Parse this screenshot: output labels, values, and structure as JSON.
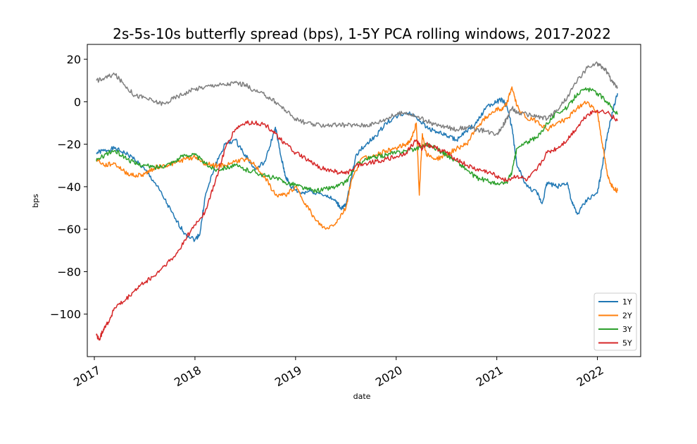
{
  "chart_data": {
    "type": "line",
    "title": "2s-5s-10s butterfly spread (bps), 1-5Y PCA rolling windows, 2017-2022",
    "xlabel": "date",
    "ylabel": "bps",
    "xlim": [
      2016.93,
      2022.43
    ],
    "ylim": [
      -120,
      27
    ],
    "x_ticks": [
      "2017",
      "2018",
      "2019",
      "2020",
      "2021",
      "2022"
    ],
    "y_ticks": [
      20,
      0,
      -20,
      -40,
      -60,
      -80,
      -100
    ],
    "legend": {
      "position": "bottom-right"
    },
    "series": [
      {
        "name": "1Y",
        "color": "#1f77b4",
        "points": [
          [
            2017.02,
            -24
          ],
          [
            2017.1,
            -23
          ],
          [
            2017.2,
            -22
          ],
          [
            2017.3,
            -24
          ],
          [
            2017.4,
            -27
          ],
          [
            2017.5,
            -32
          ],
          [
            2017.6,
            -38
          ],
          [
            2017.7,
            -46
          ],
          [
            2017.8,
            -55
          ],
          [
            2017.9,
            -62
          ],
          [
            2018.0,
            -65
          ],
          [
            2018.05,
            -62
          ],
          [
            2018.1,
            -45
          ],
          [
            2018.2,
            -30
          ],
          [
            2018.3,
            -20
          ],
          [
            2018.4,
            -18
          ],
          [
            2018.5,
            -25
          ],
          [
            2018.6,
            -32
          ],
          [
            2018.7,
            -28
          ],
          [
            2018.8,
            -12
          ],
          [
            2018.85,
            -25
          ],
          [
            2018.9,
            -35
          ],
          [
            2018.95,
            -40
          ],
          [
            2019.05,
            -43
          ],
          [
            2019.15,
            -42
          ],
          [
            2019.3,
            -44
          ],
          [
            2019.4,
            -47
          ],
          [
            2019.45,
            -50
          ],
          [
            2019.5,
            -49
          ],
          [
            2019.6,
            -25
          ],
          [
            2019.7,
            -20
          ],
          [
            2019.8,
            -16
          ],
          [
            2019.9,
            -10
          ],
          [
            2020.0,
            -7
          ],
          [
            2020.1,
            -5
          ],
          [
            2020.2,
            -7
          ],
          [
            2020.3,
            -12
          ],
          [
            2020.4,
            -14
          ],
          [
            2020.5,
            -16
          ],
          [
            2020.6,
            -18
          ],
          [
            2020.7,
            -14
          ],
          [
            2020.8,
            -10
          ],
          [
            2020.9,
            -2
          ],
          [
            2021.0,
            0
          ],
          [
            2021.05,
            1
          ],
          [
            2021.1,
            -2
          ],
          [
            2021.15,
            -12
          ],
          [
            2021.2,
            -30
          ],
          [
            2021.3,
            -40
          ],
          [
            2021.4,
            -43
          ],
          [
            2021.45,
            -48
          ],
          [
            2021.5,
            -38
          ],
          [
            2021.6,
            -40
          ],
          [
            2021.7,
            -38
          ],
          [
            2021.75,
            -48
          ],
          [
            2021.8,
            -53
          ],
          [
            2021.9,
            -46
          ],
          [
            2022.0,
            -43
          ],
          [
            2022.05,
            -30
          ],
          [
            2022.1,
            -15
          ],
          [
            2022.15,
            -5
          ],
          [
            2022.2,
            4
          ]
        ]
      },
      {
        "name": "2Y",
        "color": "#ff7f0e",
        "points": [
          [
            2017.02,
            -27
          ],
          [
            2017.1,
            -30
          ],
          [
            2017.2,
            -29
          ],
          [
            2017.3,
            -33
          ],
          [
            2017.4,
            -35
          ],
          [
            2017.5,
            -34
          ],
          [
            2017.6,
            -31
          ],
          [
            2017.7,
            -30
          ],
          [
            2017.8,
            -29
          ],
          [
            2017.9,
            -27
          ],
          [
            2018.0,
            -26
          ],
          [
            2018.1,
            -29
          ],
          [
            2018.2,
            -30
          ],
          [
            2018.3,
            -30
          ],
          [
            2018.4,
            -28
          ],
          [
            2018.5,
            -27
          ],
          [
            2018.6,
            -30
          ],
          [
            2018.7,
            -36
          ],
          [
            2018.8,
            -44
          ],
          [
            2018.9,
            -44
          ],
          [
            2019.0,
            -40
          ],
          [
            2019.1,
            -48
          ],
          [
            2019.2,
            -56
          ],
          [
            2019.3,
            -60
          ],
          [
            2019.4,
            -57
          ],
          [
            2019.5,
            -50
          ],
          [
            2019.55,
            -38
          ],
          [
            2019.65,
            -27
          ],
          [
            2019.8,
            -25
          ],
          [
            2019.9,
            -23
          ],
          [
            2020.0,
            -22
          ],
          [
            2020.1,
            -20
          ],
          [
            2020.15,
            -18
          ],
          [
            2020.2,
            -10
          ],
          [
            2020.23,
            -44
          ],
          [
            2020.26,
            -15
          ],
          [
            2020.3,
            -25
          ],
          [
            2020.4,
            -27
          ],
          [
            2020.5,
            -25
          ],
          [
            2020.6,
            -22
          ],
          [
            2020.7,
            -20
          ],
          [
            2020.8,
            -12
          ],
          [
            2020.9,
            -7
          ],
          [
            2021.0,
            -3
          ],
          [
            2021.05,
            -4
          ],
          [
            2021.1,
            -1
          ],
          [
            2021.15,
            7
          ],
          [
            2021.2,
            -2
          ],
          [
            2021.3,
            -8
          ],
          [
            2021.4,
            -9
          ],
          [
            2021.5,
            -13
          ],
          [
            2021.6,
            -10
          ],
          [
            2021.7,
            -8
          ],
          [
            2021.8,
            -3
          ],
          [
            2021.9,
            0
          ],
          [
            2022.0,
            -5
          ],
          [
            2022.05,
            -20
          ],
          [
            2022.1,
            -35
          ],
          [
            2022.15,
            -40
          ],
          [
            2022.2,
            -42
          ]
        ]
      },
      {
        "name": "3Y",
        "color": "#2ca02c",
        "points": [
          [
            2017.02,
            -28
          ],
          [
            2017.1,
            -25
          ],
          [
            2017.2,
            -23
          ],
          [
            2017.3,
            -26
          ],
          [
            2017.4,
            -29
          ],
          [
            2017.5,
            -30
          ],
          [
            2017.6,
            -31
          ],
          [
            2017.7,
            -30
          ],
          [
            2017.8,
            -28
          ],
          [
            2017.9,
            -25
          ],
          [
            2018.0,
            -25
          ],
          [
            2018.1,
            -29
          ],
          [
            2018.2,
            -32
          ],
          [
            2018.3,
            -31
          ],
          [
            2018.4,
            -30
          ],
          [
            2018.5,
            -32
          ],
          [
            2018.6,
            -33
          ],
          [
            2018.7,
            -35
          ],
          [
            2018.8,
            -36
          ],
          [
            2018.9,
            -38
          ],
          [
            2019.0,
            -39
          ],
          [
            2019.1,
            -41
          ],
          [
            2019.2,
            -42
          ],
          [
            2019.3,
            -41
          ],
          [
            2019.4,
            -40
          ],
          [
            2019.5,
            -38
          ],
          [
            2019.6,
            -30
          ],
          [
            2019.7,
            -27
          ],
          [
            2019.8,
            -26
          ],
          [
            2019.9,
            -25
          ],
          [
            2020.0,
            -24
          ],
          [
            2020.1,
            -23
          ],
          [
            2020.2,
            -22
          ],
          [
            2020.3,
            -20
          ],
          [
            2020.4,
            -22
          ],
          [
            2020.5,
            -25
          ],
          [
            2020.6,
            -28
          ],
          [
            2020.7,
            -32
          ],
          [
            2020.8,
            -36
          ],
          [
            2020.9,
            -37
          ],
          [
            2021.0,
            -39
          ],
          [
            2021.1,
            -38
          ],
          [
            2021.15,
            -33
          ],
          [
            2021.2,
            -22
          ],
          [
            2021.3,
            -19
          ],
          [
            2021.4,
            -17
          ],
          [
            2021.5,
            -10
          ],
          [
            2021.6,
            -5
          ],
          [
            2021.7,
            -3
          ],
          [
            2021.8,
            4
          ],
          [
            2021.9,
            6
          ],
          [
            2022.0,
            4
          ],
          [
            2022.1,
            0
          ],
          [
            2022.2,
            -6
          ]
        ]
      },
      {
        "name": "5Y",
        "color": "#d62728",
        "points": [
          [
            2017.02,
            -110
          ],
          [
            2017.05,
            -112
          ],
          [
            2017.1,
            -106
          ],
          [
            2017.15,
            -103
          ],
          [
            2017.2,
            -97
          ],
          [
            2017.3,
            -94
          ],
          [
            2017.4,
            -89
          ],
          [
            2017.5,
            -85
          ],
          [
            2017.6,
            -82
          ],
          [
            2017.7,
            -77
          ],
          [
            2017.8,
            -73
          ],
          [
            2017.9,
            -65
          ],
          [
            2018.0,
            -58
          ],
          [
            2018.1,
            -52
          ],
          [
            2018.2,
            -38
          ],
          [
            2018.3,
            -22
          ],
          [
            2018.4,
            -13
          ],
          [
            2018.5,
            -10
          ],
          [
            2018.6,
            -10
          ],
          [
            2018.7,
            -11
          ],
          [
            2018.8,
            -15
          ],
          [
            2018.9,
            -20
          ],
          [
            2019.0,
            -24
          ],
          [
            2019.1,
            -27
          ],
          [
            2019.2,
            -30
          ],
          [
            2019.3,
            -32
          ],
          [
            2019.4,
            -33
          ],
          [
            2019.5,
            -34
          ],
          [
            2019.6,
            -30
          ],
          [
            2019.7,
            -29
          ],
          [
            2019.8,
            -28
          ],
          [
            2019.9,
            -27
          ],
          [
            2020.0,
            -26
          ],
          [
            2020.1,
            -24
          ],
          [
            2020.2,
            -18
          ],
          [
            2020.25,
            -22
          ],
          [
            2020.3,
            -20
          ],
          [
            2020.4,
            -22
          ],
          [
            2020.5,
            -24
          ],
          [
            2020.6,
            -27
          ],
          [
            2020.7,
            -30
          ],
          [
            2020.8,
            -32
          ],
          [
            2020.9,
            -33
          ],
          [
            2021.0,
            -35
          ],
          [
            2021.1,
            -37
          ],
          [
            2021.2,
            -35
          ],
          [
            2021.3,
            -37
          ],
          [
            2021.4,
            -32
          ],
          [
            2021.5,
            -24
          ],
          [
            2021.6,
            -22
          ],
          [
            2021.7,
            -18
          ],
          [
            2021.8,
            -12
          ],
          [
            2021.9,
            -6
          ],
          [
            2022.0,
            -4
          ],
          [
            2022.1,
            -5
          ],
          [
            2022.2,
            -9
          ]
        ]
      },
      {
        "color": "#7f7f7f",
        "points": [
          [
            2017.02,
            10
          ],
          [
            2017.1,
            11
          ],
          [
            2017.2,
            13
          ],
          [
            2017.3,
            8
          ],
          [
            2017.4,
            3
          ],
          [
            2017.5,
            2
          ],
          [
            2017.6,
            0
          ],
          [
            2017.7,
            -1
          ],
          [
            2017.8,
            2
          ],
          [
            2017.9,
            4
          ],
          [
            2018.0,
            6
          ],
          [
            2018.1,
            7
          ],
          [
            2018.2,
            8
          ],
          [
            2018.3,
            8
          ],
          [
            2018.4,
            9
          ],
          [
            2018.5,
            8
          ],
          [
            2018.6,
            5
          ],
          [
            2018.7,
            3
          ],
          [
            2018.8,
            0
          ],
          [
            2018.9,
            -4
          ],
          [
            2019.0,
            -8
          ],
          [
            2019.1,
            -10
          ],
          [
            2019.2,
            -11
          ],
          [
            2019.3,
            -11
          ],
          [
            2019.4,
            -11
          ],
          [
            2019.5,
            -11
          ],
          [
            2019.6,
            -11
          ],
          [
            2019.7,
            -11
          ],
          [
            2019.8,
            -10
          ],
          [
            2019.9,
            -8
          ],
          [
            2020.0,
            -6
          ],
          [
            2020.1,
            -5
          ],
          [
            2020.2,
            -7
          ],
          [
            2020.3,
            -9
          ],
          [
            2020.4,
            -11
          ],
          [
            2020.5,
            -12
          ],
          [
            2020.6,
            -13
          ],
          [
            2020.7,
            -12
          ],
          [
            2020.8,
            -13
          ],
          [
            2020.9,
            -14
          ],
          [
            2021.0,
            -15
          ],
          [
            2021.05,
            -12
          ],
          [
            2021.1,
            -8
          ],
          [
            2021.15,
            -3
          ],
          [
            2021.2,
            -5
          ],
          [
            2021.3,
            -6
          ],
          [
            2021.4,
            -7
          ],
          [
            2021.5,
            -8
          ],
          [
            2021.6,
            -4
          ],
          [
            2021.7,
            2
          ],
          [
            2021.8,
            10
          ],
          [
            2021.9,
            16
          ],
          [
            2022.0,
            18
          ],
          [
            2022.05,
            16
          ],
          [
            2022.1,
            14
          ],
          [
            2022.15,
            9
          ],
          [
            2022.2,
            7
          ]
        ]
      }
    ]
  }
}
